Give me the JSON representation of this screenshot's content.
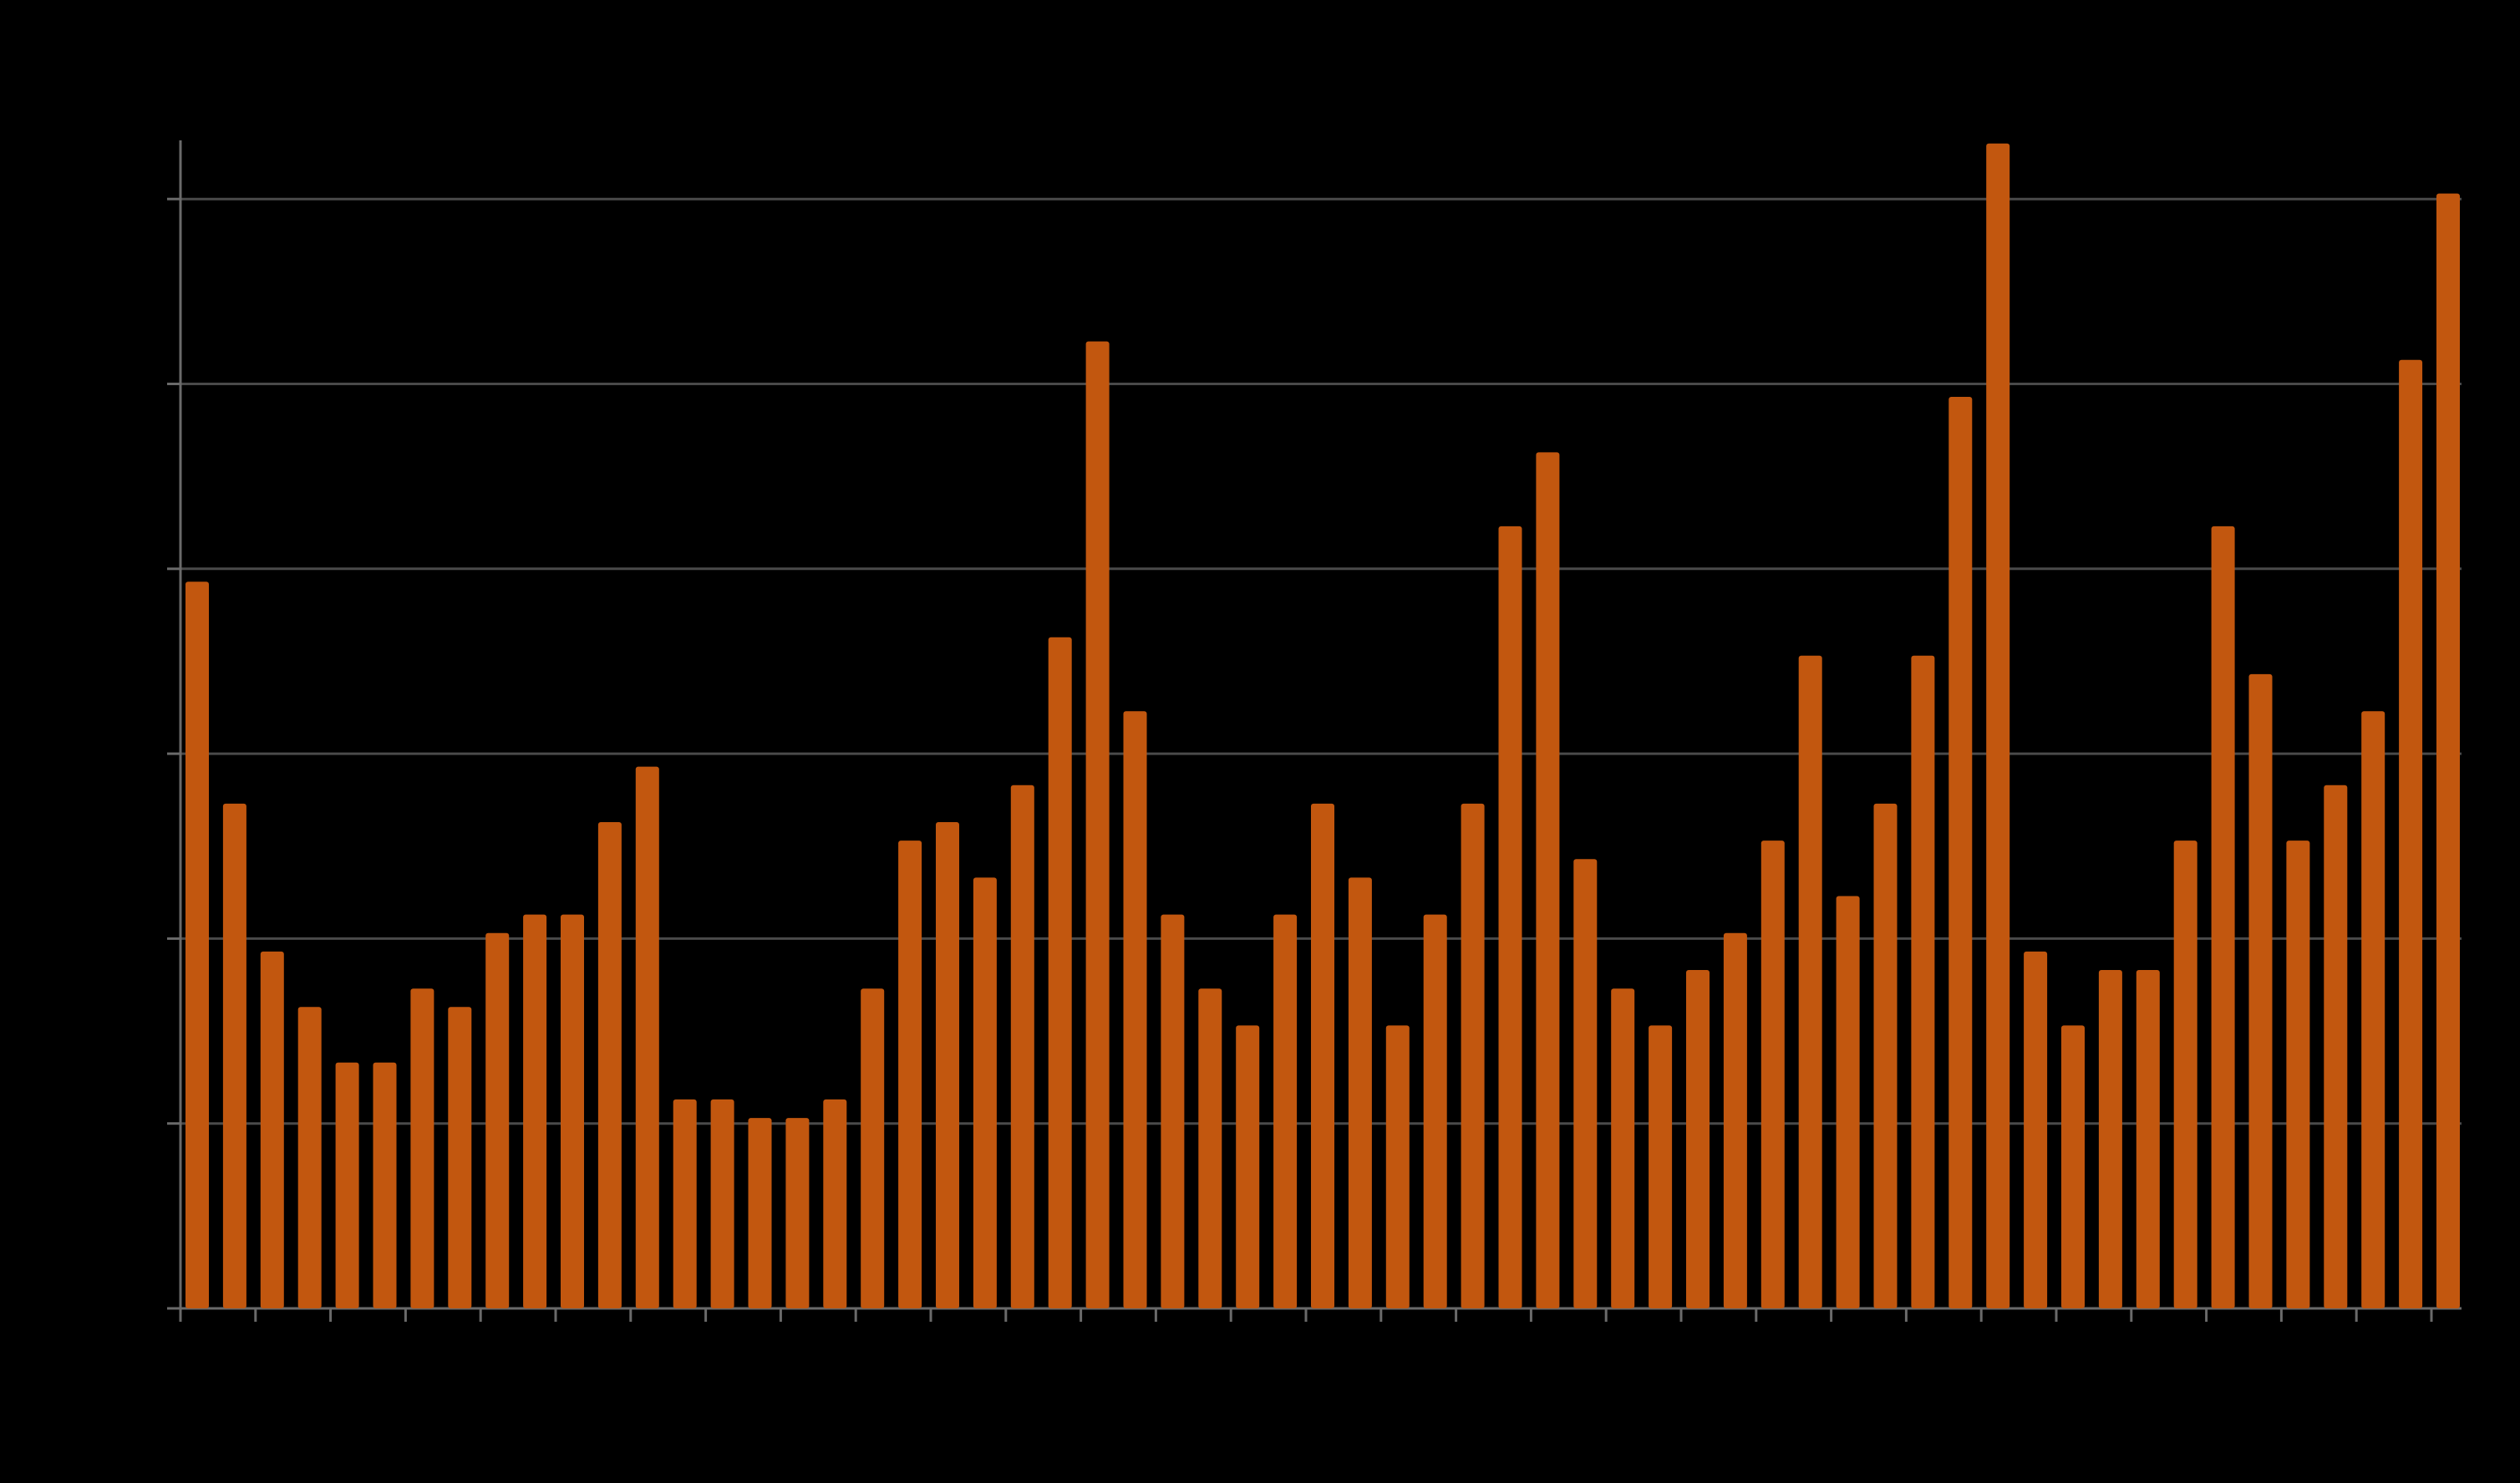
{
  "colors": {
    "background": "#000000",
    "bar": "#c2570f",
    "gridline": "#4a4a4a",
    "axis": "#6a6a6a"
  },
  "chart_data": {
    "type": "bar",
    "title": "",
    "xlabel": "",
    "ylabel": "",
    "ylim": [
      0,
      6
    ],
    "y_gridlines": [
      1,
      2,
      3,
      4,
      5,
      6
    ],
    "grid": "horizontal",
    "legend": "none",
    "values": [
      3.93,
      2.73,
      1.93,
      1.63,
      1.33,
      1.33,
      1.73,
      1.63,
      2.03,
      2.13,
      2.13,
      2.63,
      2.93,
      1.13,
      1.13,
      1.03,
      1.03,
      1.13,
      1.73,
      2.53,
      2.63,
      2.33,
      2.83,
      3.63,
      5.23,
      3.23,
      2.13,
      1.73,
      1.53,
      2.13,
      2.73,
      2.33,
      1.53,
      2.13,
      2.73,
      4.23,
      4.63,
      2.43,
      1.73,
      1.53,
      1.83,
      2.03,
      2.53,
      3.53,
      2.23,
      2.73,
      3.53,
      4.93,
      6.3,
      1.93,
      1.53,
      1.83,
      1.83,
      2.53,
      4.23,
      3.43,
      2.53,
      2.83,
      3.23,
      5.13,
      6.03
    ]
  }
}
